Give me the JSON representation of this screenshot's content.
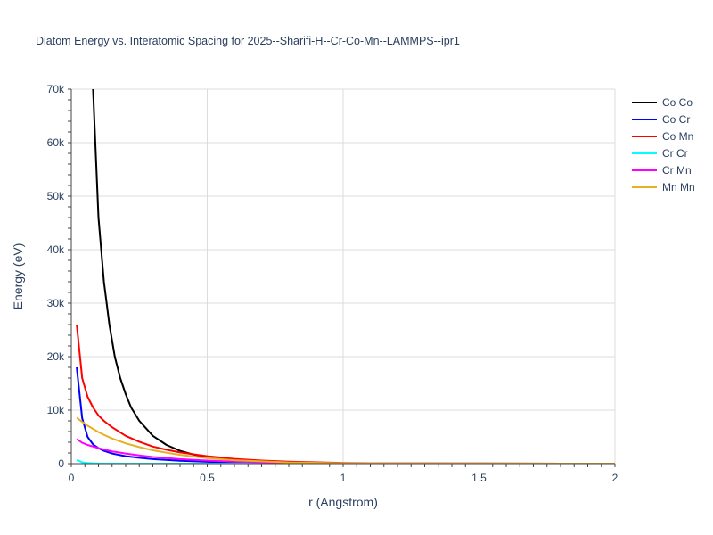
{
  "chart_data": {
    "type": "line",
    "title": "Diatom Energy vs. Interatomic Spacing for 2025--Sharifi-H--Cr-Co-Mn--LAMMPS--ipr1",
    "xlabel": "r (Angstrom)",
    "ylabel": "Energy (eV)",
    "xlim": [
      0,
      2
    ],
    "ylim": [
      0,
      70000
    ],
    "x_ticks": [
      0,
      0.5,
      1,
      1.5,
      2
    ],
    "x_tick_labels": [
      "0",
      "0.5",
      "1",
      "1.5",
      "2"
    ],
    "y_ticks": [
      0,
      10000,
      20000,
      30000,
      40000,
      50000,
      60000,
      70000
    ],
    "y_tick_labels": [
      "0",
      "10k",
      "20k",
      "30k",
      "40k",
      "50k",
      "60k",
      "70k"
    ],
    "grid": true,
    "legend_position": "top-right",
    "series": [
      {
        "name": "Co Co",
        "color": "#000000",
        "x": [
          0.08,
          0.1,
          0.12,
          0.14,
          0.16,
          0.18,
          0.2,
          0.22,
          0.25,
          0.3,
          0.35,
          0.4,
          0.45,
          0.5,
          0.6,
          0.7,
          0.8,
          0.9,
          1.0,
          1.2,
          1.5,
          2.0
        ],
        "y": [
          70000,
          46000,
          34000,
          26000,
          20000,
          16000,
          13000,
          10500,
          8000,
          5200,
          3500,
          2400,
          1700,
          1200,
          700,
          430,
          260,
          150,
          80,
          30,
          10,
          2
        ]
      },
      {
        "name": "Co Cr",
        "color": "#0000ff",
        "x": [
          0.02,
          0.04,
          0.06,
          0.08,
          0.1,
          0.12,
          0.15,
          0.2,
          0.25,
          0.3,
          0.4,
          0.5,
          0.6,
          0.8,
          1.0,
          1.5,
          2.0
        ],
        "y": [
          18000,
          8500,
          5000,
          3600,
          2900,
          2400,
          1900,
          1400,
          1100,
          850,
          550,
          350,
          220,
          100,
          40,
          8,
          2
        ]
      },
      {
        "name": "Co Mn",
        "color": "#ff0000",
        "x": [
          0.02,
          0.04,
          0.06,
          0.08,
          0.1,
          0.12,
          0.15,
          0.2,
          0.25,
          0.3,
          0.35,
          0.4,
          0.5,
          0.6,
          0.7,
          0.8,
          1.0,
          1.2,
          1.5,
          2.0
        ],
        "y": [
          26000,
          16000,
          12500,
          10500,
          9000,
          8000,
          6800,
          5200,
          4100,
          3200,
          2600,
          2100,
          1400,
          900,
          580,
          370,
          130,
          40,
          10,
          2
        ]
      },
      {
        "name": "Cr Cr",
        "color": "#00ffff",
        "x": [
          0.02,
          0.04,
          0.06,
          0.08,
          0.1,
          0.15,
          0.2,
          0.3,
          0.5,
          1.0,
          1.5,
          2.0
        ],
        "y": [
          700,
          250,
          120,
          70,
          40,
          15,
          8,
          3,
          1,
          0,
          0,
          0
        ]
      },
      {
        "name": "Cr Mn",
        "color": "#ff00ff",
        "x": [
          0.02,
          0.04,
          0.06,
          0.08,
          0.1,
          0.12,
          0.15,
          0.2,
          0.25,
          0.3,
          0.4,
          0.5,
          0.6,
          0.8,
          1.0,
          1.5,
          2.0
        ],
        "y": [
          4600,
          3900,
          3500,
          3200,
          2900,
          2650,
          2300,
          1900,
          1550,
          1250,
          850,
          580,
          380,
          160,
          60,
          10,
          2
        ]
      },
      {
        "name": "Mn Mn",
        "color": "#e6b020",
        "x": [
          0.02,
          0.04,
          0.06,
          0.08,
          0.1,
          0.12,
          0.15,
          0.2,
          0.25,
          0.3,
          0.35,
          0.4,
          0.5,
          0.6,
          0.8,
          1.0,
          1.5,
          2.0
        ],
        "y": [
          8600,
          7800,
          7100,
          6500,
          5900,
          5400,
          4700,
          3800,
          3100,
          2500,
          2050,
          1650,
          1050,
          650,
          230,
          70,
          10,
          2
        ]
      }
    ]
  }
}
